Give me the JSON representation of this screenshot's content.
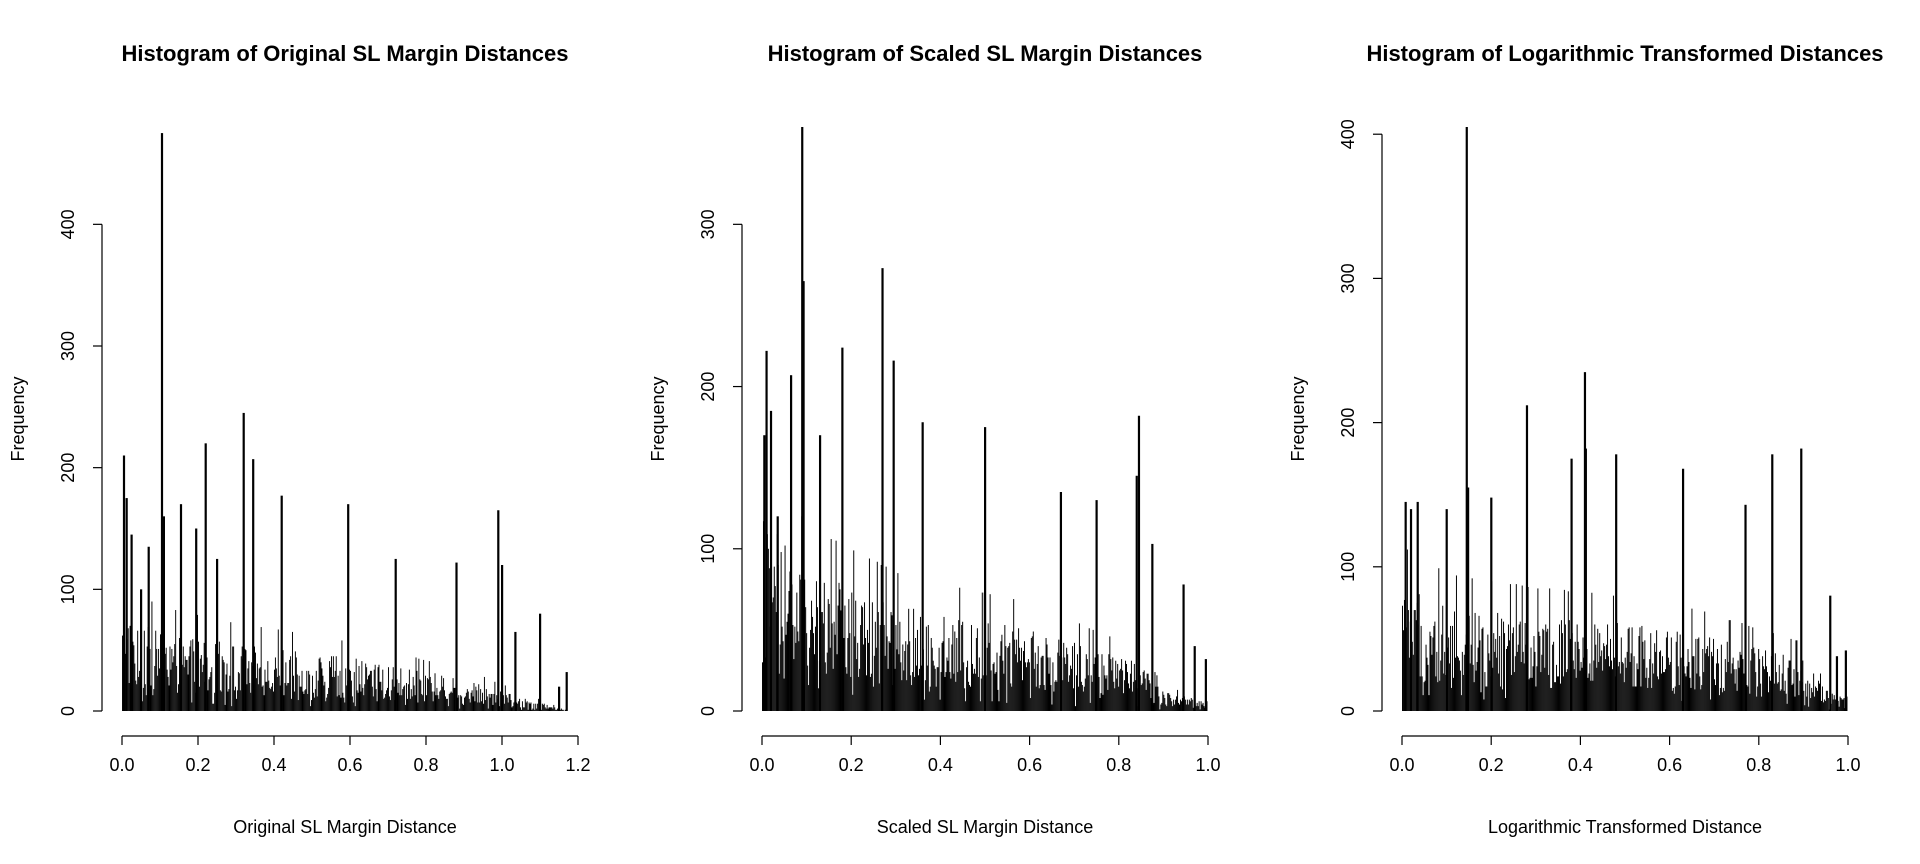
{
  "chart_data": [
    {
      "type": "bar",
      "title": "Histogram of Original SL Margin Distances",
      "xlabel": "Original SL Margin Distance",
      "ylabel": "Frequency",
      "xlim": [
        0,
        1.2
      ],
      "ylim": [
        0,
        480
      ],
      "xticks": [
        "0.0",
        "0.2",
        "0.4",
        "0.6",
        "0.8",
        "1.0",
        "1.2"
      ],
      "yticks": [
        "0",
        "100",
        "200",
        "300",
        "400"
      ],
      "bin_width": 0.0025,
      "peaks": [
        {
          "x": 0.005,
          "y": 210
        },
        {
          "x": 0.012,
          "y": 175
        },
        {
          "x": 0.025,
          "y": 145
        },
        {
          "x": 0.05,
          "y": 100
        },
        {
          "x": 0.07,
          "y": 135
        },
        {
          "x": 0.105,
          "y": 475
        },
        {
          "x": 0.11,
          "y": 160
        },
        {
          "x": 0.155,
          "y": 170
        },
        {
          "x": 0.195,
          "y": 150
        },
        {
          "x": 0.22,
          "y": 220
        },
        {
          "x": 0.25,
          "y": 125
        },
        {
          "x": 0.32,
          "y": 245
        },
        {
          "x": 0.345,
          "y": 207
        },
        {
          "x": 0.42,
          "y": 177
        },
        {
          "x": 0.595,
          "y": 170
        },
        {
          "x": 0.72,
          "y": 125
        },
        {
          "x": 0.88,
          "y": 122
        },
        {
          "x": 0.99,
          "y": 165
        },
        {
          "x": 1.0,
          "y": 120
        },
        {
          "x": 1.035,
          "y": 65
        },
        {
          "x": 1.1,
          "y": 80
        },
        {
          "x": 1.15,
          "y": 20
        },
        {
          "x": 1.17,
          "y": 32
        }
      ],
      "baseline_levels": [
        [
          0.0,
          55
        ],
        [
          0.1,
          45
        ],
        [
          0.3,
          38
        ],
        [
          0.6,
          30
        ],
        [
          0.9,
          18
        ],
        [
          1.05,
          8
        ],
        [
          1.18,
          0
        ]
      ],
      "data_extent": [
        0,
        1.18
      ]
    },
    {
      "type": "bar",
      "title": "Histogram of Scaled SL Margin Distances",
      "xlabel": "Scaled SL Margin Distance",
      "ylabel": "Frequency",
      "xlim": [
        0,
        1.0
      ],
      "ylim": [
        0,
        360
      ],
      "xticks": [
        "0.0",
        "0.2",
        "0.4",
        "0.6",
        "0.8",
        "1.0"
      ],
      "yticks": [
        "0",
        "100",
        "200",
        "300"
      ],
      "bin_width": 0.0022,
      "peaks": [
        {
          "x": 0.005,
          "y": 170
        },
        {
          "x": 0.01,
          "y": 222
        },
        {
          "x": 0.02,
          "y": 185
        },
        {
          "x": 0.035,
          "y": 120
        },
        {
          "x": 0.065,
          "y": 207
        },
        {
          "x": 0.09,
          "y": 360
        },
        {
          "x": 0.093,
          "y": 265
        },
        {
          "x": 0.13,
          "y": 170
        },
        {
          "x": 0.18,
          "y": 224
        },
        {
          "x": 0.27,
          "y": 273
        },
        {
          "x": 0.295,
          "y": 216
        },
        {
          "x": 0.36,
          "y": 178
        },
        {
          "x": 0.5,
          "y": 175
        },
        {
          "x": 0.67,
          "y": 135
        },
        {
          "x": 0.75,
          "y": 130
        },
        {
          "x": 0.84,
          "y": 145
        },
        {
          "x": 0.845,
          "y": 182
        },
        {
          "x": 0.875,
          "y": 103
        },
        {
          "x": 0.945,
          "y": 78
        },
        {
          "x": 0.97,
          "y": 40
        },
        {
          "x": 0.995,
          "y": 32
        }
      ],
      "baseline_levels": [
        [
          0.0,
          85
        ],
        [
          0.1,
          60
        ],
        [
          0.3,
          45
        ],
        [
          0.6,
          35
        ],
        [
          0.85,
          20
        ],
        [
          0.9,
          8
        ],
        [
          1.0,
          4
        ]
      ],
      "data_extent": [
        0,
        1.0
      ]
    },
    {
      "type": "bar",
      "title": "Histogram of Logarithmic Transformed Distances",
      "xlabel": "Logarithmic Transformed Distance",
      "ylabel": "Frequency",
      "xlim": [
        0,
        1.0
      ],
      "ylim": [
        0,
        405
      ],
      "xticks": [
        "0.0",
        "0.2",
        "0.4",
        "0.6",
        "0.8",
        "1.0"
      ],
      "yticks": [
        "0",
        "100",
        "200",
        "300",
        "400"
      ],
      "bin_width": 0.0022,
      "peaks": [
        {
          "x": 0.008,
          "y": 145
        },
        {
          "x": 0.02,
          "y": 140
        },
        {
          "x": 0.035,
          "y": 145
        },
        {
          "x": 0.1,
          "y": 140
        },
        {
          "x": 0.145,
          "y": 405
        },
        {
          "x": 0.148,
          "y": 155
        },
        {
          "x": 0.2,
          "y": 148
        },
        {
          "x": 0.28,
          "y": 212
        },
        {
          "x": 0.38,
          "y": 175
        },
        {
          "x": 0.41,
          "y": 235
        },
        {
          "x": 0.412,
          "y": 182
        },
        {
          "x": 0.48,
          "y": 178
        },
        {
          "x": 0.63,
          "y": 168
        },
        {
          "x": 0.77,
          "y": 143
        },
        {
          "x": 0.83,
          "y": 178
        },
        {
          "x": 0.895,
          "y": 182
        },
        {
          "x": 0.96,
          "y": 80
        },
        {
          "x": 0.975,
          "y": 38
        },
        {
          "x": 0.995,
          "y": 42
        }
      ],
      "baseline_levels": [
        [
          0.0,
          60
        ],
        [
          0.1,
          50
        ],
        [
          0.3,
          45
        ],
        [
          0.6,
          40
        ],
        [
          0.9,
          25
        ],
        [
          0.95,
          10
        ],
        [
          1.0,
          5
        ]
      ],
      "data_extent": [
        0,
        1.0
      ]
    }
  ]
}
